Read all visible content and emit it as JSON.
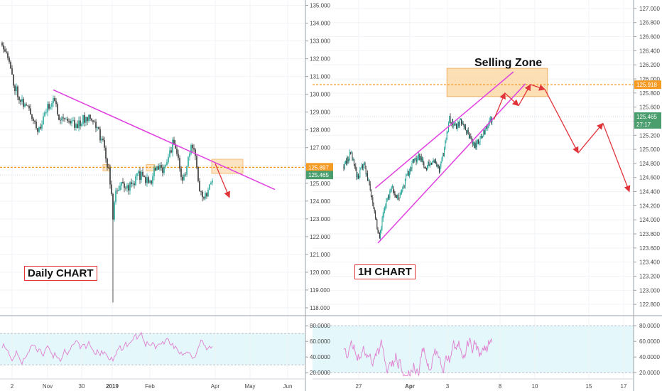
{
  "labels": {
    "daily_chart": "Daily CHART",
    "hourly_chart": "1H CHART",
    "selling_zone": "Selling Zone"
  },
  "colors": {
    "up_candle": "#26a69a",
    "down_candle": "#333333",
    "trendline": "#e040e0",
    "level_line": "#f59a23",
    "zone_fill": "#fbd9a8",
    "projection": "#e0343a",
    "rsi_line": "#e07fd0",
    "rsi_band": "#e4f7fb"
  },
  "chart_data": [
    {
      "type": "candlestick",
      "name_label": "Daily CHART",
      "x_tick_labels": [
        "2",
        "Nov",
        "30",
        "2019",
        "Feb",
        "Apr",
        "May",
        "Jun"
      ],
      "y_tick_labels": [
        "118.000",
        "119.000",
        "120.000",
        "121.000",
        "122.000",
        "123.000",
        "124.000",
        "125.000",
        "126.000",
        "127.000",
        "128.000",
        "129.000",
        "130.000",
        "131.000",
        "132.000",
        "133.000",
        "134.000",
        "135.000"
      ],
      "ylim": [
        117.6,
        135.3
      ],
      "price_labels": [
        {
          "text": "125.897",
          "value": 125.897,
          "color": "#f59a23"
        },
        {
          "text": "125.465",
          "value": 125.465,
          "color": "#4a9e6e"
        }
      ],
      "level": 125.897,
      "trendline": [
        {
          "bar": 36,
          "price": 130.25
        },
        {
          "bar": 192,
          "price": 124.65
        }
      ],
      "anchors": [
        {
          "bar": 0,
          "price": 132.9
        },
        {
          "bar": 3,
          "price": 132.5
        },
        {
          "bar": 8,
          "price": 130.6
        },
        {
          "bar": 14,
          "price": 129.6
        },
        {
          "bar": 20,
          "price": 129.0
        },
        {
          "bar": 26,
          "price": 127.9
        },
        {
          "bar": 30,
          "price": 128.9
        },
        {
          "bar": 36,
          "price": 129.8
        },
        {
          "bar": 40,
          "price": 128.8
        },
        {
          "bar": 46,
          "price": 128.6
        },
        {
          "bar": 52,
          "price": 128.3
        },
        {
          "bar": 58,
          "price": 128.6
        },
        {
          "bar": 62,
          "price": 128.9
        },
        {
          "bar": 66,
          "price": 128.2
        },
        {
          "bar": 70,
          "price": 127.5
        },
        {
          "bar": 73,
          "price": 126.6
        },
        {
          "bar": 76,
          "price": 125.2
        },
        {
          "bar": 78,
          "price": 123.1
        },
        {
          "bar": 80,
          "price": 124.6
        },
        {
          "bar": 84,
          "price": 124.9
        },
        {
          "bar": 90,
          "price": 124.8
        },
        {
          "bar": 96,
          "price": 125.5
        },
        {
          "bar": 100,
          "price": 125.3
        },
        {
          "bar": 104,
          "price": 125.0
        },
        {
          "bar": 108,
          "price": 125.9
        },
        {
          "bar": 112,
          "price": 125.7
        },
        {
          "bar": 116,
          "price": 126.3
        },
        {
          "bar": 120,
          "price": 127.2
        },
        {
          "bar": 124,
          "price": 126.4
        },
        {
          "bar": 127,
          "price": 125.0
        },
        {
          "bar": 130,
          "price": 126.0
        },
        {
          "bar": 133,
          "price": 126.9
        },
        {
          "bar": 136,
          "price": 126.6
        },
        {
          "bar": 139,
          "price": 124.8
        },
        {
          "bar": 142,
          "price": 124.2
        },
        {
          "bar": 145,
          "price": 124.7
        },
        {
          "bar": 148,
          "price": 125.4
        }
      ],
      "projection": [
        {
          "bar": 150,
          "price": 126.1
        },
        {
          "bar": 160,
          "price": 124.2
        }
      ],
      "rsi": {
        "y_tick_labels": [
          "20.0000",
          "40.0000",
          "60.0000",
          "80.0000"
        ],
        "ylim": [
          12,
          92
        ],
        "levels": [
          30,
          70
        ]
      }
    },
    {
      "type": "candlestick",
      "name_label": "1H CHART",
      "x_tick_labels": [
        "27",
        "Apr",
        "3",
        "8",
        "10",
        "15",
        "17"
      ],
      "y_tick_labels": [
        "122.800",
        "123.000",
        "123.200",
        "123.400",
        "123.600",
        "123.800",
        "124.000",
        "124.200",
        "124.400",
        "124.600",
        "124.800",
        "125.000",
        "125.200",
        "125.400",
        "125.600",
        "125.800",
        "126.000",
        "126.200",
        "126.400",
        "126.600",
        "126.800",
        "127.000"
      ],
      "ylim": [
        122.65,
        127.12
      ],
      "price_labels": [
        {
          "text": "125.918",
          "value": 125.918,
          "color": "#f59a23"
        },
        {
          "text": "125.465",
          "value": 125.465,
          "color": "#4a9e6e"
        },
        {
          "text": "27:17",
          "value": 125.355,
          "color": "#4a9e6e"
        }
      ],
      "level": 125.918,
      "selling_zone": {
        "bar_from": 121,
        "bar_to": 239,
        "price_low": 125.75,
        "price_high": 126.15
      },
      "channel": {
        "upper": [
          {
            "bar": 37,
            "price": 124.45
          },
          {
            "bar": 199,
            "price": 126.1
          }
        ],
        "lower": [
          {
            "bar": 40,
            "price": 123.67
          },
          {
            "bar": 213,
            "price": 125.93
          }
        ]
      },
      "anchors": [
        {
          "bar": 0,
          "price": 124.75
        },
        {
          "bar": 8,
          "price": 124.95
        },
        {
          "bar": 16,
          "price": 124.6
        },
        {
          "bar": 24,
          "price": 124.8
        },
        {
          "bar": 32,
          "price": 124.35
        },
        {
          "bar": 38,
          "price": 124.0
        },
        {
          "bar": 42,
          "price": 123.75
        },
        {
          "bar": 48,
          "price": 124.2
        },
        {
          "bar": 56,
          "price": 124.45
        },
        {
          "bar": 64,
          "price": 124.3
        },
        {
          "bar": 72,
          "price": 124.55
        },
        {
          "bar": 80,
          "price": 124.8
        },
        {
          "bar": 88,
          "price": 124.9
        },
        {
          "bar": 96,
          "price": 124.75
        },
        {
          "bar": 104,
          "price": 124.85
        },
        {
          "bar": 112,
          "price": 124.7
        },
        {
          "bar": 118,
          "price": 125.0
        },
        {
          "bar": 124,
          "price": 125.45
        },
        {
          "bar": 130,
          "price": 125.3
        },
        {
          "bar": 138,
          "price": 125.4
        },
        {
          "bar": 146,
          "price": 125.2
        },
        {
          "bar": 154,
          "price": 125.05
        },
        {
          "bar": 162,
          "price": 125.2
        },
        {
          "bar": 168,
          "price": 125.3
        },
        {
          "bar": 174,
          "price": 125.45
        }
      ],
      "projection": [
        {
          "bar": 176,
          "price": 125.42
        },
        {
          "bar": 189,
          "price": 125.8
        },
        {
          "bar": 205,
          "price": 125.62
        },
        {
          "bar": 219,
          "price": 125.92
        },
        {
          "bar": 236,
          "price": 125.85
        },
        {
          "bar": 275,
          "price": 124.95
        },
        {
          "bar": 304,
          "price": 125.37
        },
        {
          "bar": 335,
          "price": 124.4
        }
      ],
      "rsi": {
        "y_tick_labels": [
          "20.0000",
          "40.0000",
          "60.0000",
          "80.0000"
        ],
        "ylim": [
          12,
          92
        ],
        "levels": [
          20,
          80
        ]
      }
    }
  ]
}
